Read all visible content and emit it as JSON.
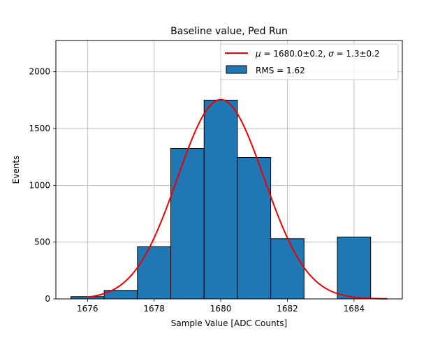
{
  "chart_data": {
    "type": "bar",
    "title": "Baseline value, Ped Run",
    "xlabel": "Sample Value [ADC Counts]",
    "ylabel": "Events",
    "xlim": [
      1675.05,
      1685.45
    ],
    "ylim": [
      0,
      2275
    ],
    "grid": true,
    "bin_width": 1,
    "bin_centers": [
      1676,
      1677,
      1678,
      1679,
      1680,
      1681,
      1682,
      1683,
      1684
    ],
    "values": [
      20,
      75,
      460,
      1325,
      1750,
      1245,
      530,
      0,
      545
    ],
    "xticks": [
      1676,
      1678,
      1680,
      1682,
      1684
    ],
    "yticks": [
      0,
      500,
      1000,
      1500,
      2000
    ],
    "series": [
      {
        "name": "RMS = 1.62",
        "kind": "histogram",
        "color": "#1f77b4"
      },
      {
        "name": "μ = 1680.0±0.2, σ = 1.3±0.2",
        "kind": "gaussian-fit",
        "color": "#ee0000",
        "mu": 1680.0,
        "sigma": 1.3,
        "amplitude": 1755,
        "x_range": [
          1676,
          1685
        ]
      }
    ],
    "legend": {
      "position": "top-right",
      "fit_label": {
        "mu_symbol": "μ",
        "mu_text": " = 1680.0±0.2, ",
        "sigma_symbol": "σ",
        "sigma_text": " = 1.3±0.2"
      },
      "hist_label": "RMS = 1.62"
    }
  }
}
